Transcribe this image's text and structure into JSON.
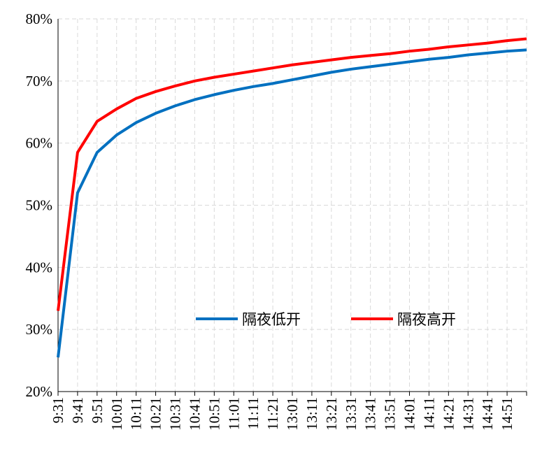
{
  "chart_data": {
    "type": "line",
    "categories": [
      "9:31",
      "9:41",
      "9:51",
      "10:01",
      "10:11",
      "10:21",
      "10:31",
      "10:41",
      "10:51",
      "11:01",
      "11:11",
      "11:21",
      "13:01",
      "13:11",
      "13:21",
      "13:31",
      "13:41",
      "13:51",
      "14:01",
      "14:11",
      "14:21",
      "14:31",
      "14:41",
      "14:51",
      null
    ],
    "series": [
      {
        "name": "隔夜低开",
        "color": "#0070c0",
        "values": [
          25.5,
          52,
          58.5,
          61.3,
          63.3,
          64.8,
          66,
          67,
          67.8,
          68.5,
          69.1,
          69.6,
          70.2,
          70.8,
          71.4,
          71.9,
          72.3,
          72.7,
          73.1,
          73.5,
          73.8,
          74.2,
          74.5,
          74.8,
          75
        ]
      },
      {
        "name": "隔夜高开",
        "color": "#ff0000",
        "values": [
          33,
          58.5,
          63.5,
          65.5,
          67.2,
          68.3,
          69.2,
          70,
          70.6,
          71.1,
          71.6,
          72.1,
          72.6,
          73,
          73.4,
          73.8,
          74.1,
          74.4,
          74.8,
          75.1,
          75.5,
          75.8,
          76.1,
          76.5,
          76.8
        ]
      }
    ],
    "ylim": [
      20,
      80
    ],
    "yticks": [
      {
        "value": 20,
        "label": "20%"
      },
      {
        "value": 30,
        "label": "30%"
      },
      {
        "value": 40,
        "label": "40%"
      },
      {
        "value": 50,
        "label": "50%"
      },
      {
        "value": 60,
        "label": "60%"
      },
      {
        "value": 70,
        "label": "70%"
      },
      {
        "value": 80,
        "label": "80%"
      }
    ],
    "grid": true
  }
}
